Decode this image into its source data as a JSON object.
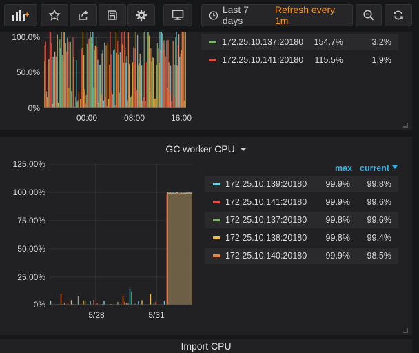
{
  "toolbar": {
    "time_range_label": "Last 7 days",
    "refresh_label": "Refresh every 1m",
    "icons": [
      "grafana-logo-icon",
      "star-icon",
      "share-icon",
      "save-icon",
      "settings-gear-icon",
      "tv-monitor-icon",
      "clock-icon",
      "zoom-out-icon",
      "refresh-icon"
    ]
  },
  "colors": {
    "green": "#7eb26d",
    "yellow": "#eab839",
    "blue": "#6ed0e0",
    "orange": "#ef843c",
    "red": "#e24d42",
    "accent_blue": "#33b5e5",
    "accent_orange": "#f79520"
  },
  "top_panel": {
    "y_ticks": [
      "100.0%",
      "50.0%",
      "0%"
    ],
    "x_ticks": [
      "00:00",
      "08:00",
      "16:00"
    ],
    "legend": [
      {
        "name": "172.25.10.137:20180",
        "max": "154.7%",
        "current": "3.2%",
        "color": "#7eb26d"
      },
      {
        "name": "172.25.10.141:20180",
        "max": "115.5%",
        "current": "1.9%",
        "color": "#e24d42"
      }
    ]
  },
  "gc_panel": {
    "title": "GC worker CPU",
    "y_ticks": [
      "125.00%",
      "100.00%",
      "75.00%",
      "50.00%",
      "25.00%",
      "0%"
    ],
    "x_ticks": [
      "5/28",
      "5/31"
    ],
    "legend_header": {
      "max": "max",
      "current": "current"
    },
    "legend": [
      {
        "name": "172.25.10.139:20180",
        "max": "99.9%",
        "current": "99.8%",
        "color": "#6ed0e0"
      },
      {
        "name": "172.25.10.141:20180",
        "max": "99.9%",
        "current": "99.6%",
        "color": "#e24d42"
      },
      {
        "name": "172.25.10.137:20180",
        "max": "99.8%",
        "current": "99.6%",
        "color": "#7eb26d"
      },
      {
        "name": "172.25.10.138:20180",
        "max": "99.8%",
        "current": "99.4%",
        "color": "#eab839"
      },
      {
        "name": "172.25.10.140:20180",
        "max": "99.9%",
        "current": "98.5%",
        "color": "#ef843c"
      }
    ]
  },
  "next_panel": {
    "title": "Import CPU"
  }
}
